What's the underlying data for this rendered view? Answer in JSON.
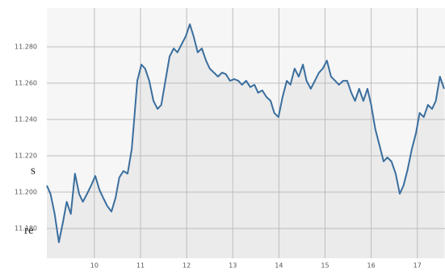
{
  "chart_data": {
    "type": "line",
    "x": [
      8.97,
      9.05,
      9.14,
      9.23,
      9.32,
      9.4,
      9.49,
      9.58,
      9.67,
      9.75,
      9.84,
      9.93,
      10.02,
      10.11,
      10.19,
      10.28,
      10.37,
      10.46,
      10.54,
      10.63,
      10.72,
      10.81,
      10.86,
      10.93,
      11.02,
      11.1,
      11.19,
      11.28,
      11.37,
      11.45,
      11.54,
      11.63,
      11.72,
      11.8,
      11.89,
      11.98,
      12.07,
      12.15,
      12.24,
      12.33,
      12.42,
      12.5,
      12.59,
      12.68,
      12.77,
      12.85,
      12.94,
      13.03,
      13.12,
      13.2,
      13.29,
      13.38,
      13.47,
      13.55,
      13.64,
      13.73,
      13.82,
      13.9,
      13.99,
      14.08,
      14.17,
      14.25,
      14.34,
      14.43,
      14.52,
      14.6,
      14.69,
      14.78,
      14.87,
      14.95,
      15.04,
      15.13,
      15.22,
      15.3,
      15.39,
      15.48,
      15.57,
      15.65,
      15.74,
      15.83,
      15.92,
      16.0,
      16.09,
      16.18,
      16.27,
      16.35,
      16.44,
      16.53,
      16.62,
      16.7,
      16.79,
      16.88,
      16.97,
      17.05,
      17.14,
      17.23,
      17.32,
      17.4,
      17.49,
      17.58
    ],
    "series": [
      {
        "color": "#3a6e9e",
        "values": [
          11.2036,
          11.199,
          11.188,
          11.1724,
          11.1836,
          11.1947,
          11.188,
          11.2102,
          11.199,
          11.1947,
          11.199,
          11.2036,
          11.2089,
          11.2013,
          11.1969,
          11.1924,
          11.1893,
          11.1969,
          11.208,
          11.2116,
          11.2102,
          11.2236,
          11.2391,
          11.2613,
          11.2702,
          11.268,
          11.2613,
          11.2502,
          11.2458,
          11.248,
          11.2613,
          11.2747,
          11.2791,
          11.2769,
          11.2813,
          11.2858,
          11.2924,
          11.2858,
          11.2769,
          11.2791,
          11.2724,
          11.268,
          11.2658,
          11.2636,
          11.2658,
          11.2649,
          11.2613,
          11.2622,
          11.2613,
          11.2591,
          11.2613,
          11.2578,
          11.2591,
          11.2547,
          11.256,
          11.2524,
          11.2502,
          11.2436,
          11.2413,
          11.2524,
          11.2613,
          11.2591,
          11.268,
          11.2636,
          11.2702,
          11.2613,
          11.2569,
          11.2613,
          11.2658,
          11.268,
          11.2724,
          11.2636,
          11.2613,
          11.2591,
          11.2613,
          11.2613,
          11.2547,
          11.2502,
          11.2569,
          11.2502,
          11.2569,
          11.248,
          11.2347,
          11.2258,
          11.2169,
          11.2191,
          11.2169,
          11.2102,
          11.1991,
          11.2036,
          11.2124,
          11.2236,
          11.2324,
          11.2436,
          11.2413,
          11.248,
          11.2458,
          11.2502,
          11.2636,
          11.2569
        ]
      }
    ],
    "xlim": [
      8.97,
      17.6
    ],
    "xticks": [
      10,
      11,
      12,
      13,
      14,
      15,
      16,
      17
    ],
    "ylim": [
      11.1636,
      11.3013
    ],
    "yticks": [
      {
        "value": 11.18,
        "label": "11.180"
      },
      {
        "value": 11.2,
        "label": "11.200"
      },
      {
        "value": 11.22,
        "label": "11.220"
      },
      {
        "value": 11.24,
        "label": "11.240"
      },
      {
        "value": 11.26,
        "label": "11.260"
      },
      {
        "value": 11.28,
        "label": "11.280"
      }
    ],
    "grid": true,
    "area_fill": "#ebebeb",
    "annotations": [
      "s",
      "re"
    ]
  }
}
